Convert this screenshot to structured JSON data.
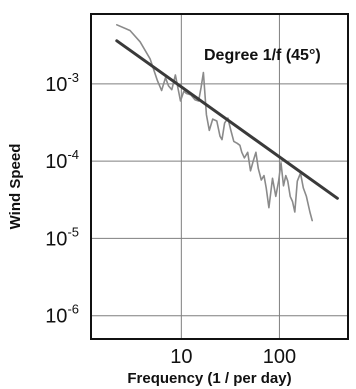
{
  "chart_data": {
    "type": "line",
    "title": "",
    "annotation": "Degree 1/f  (45°)",
    "xlabel": "Frequency (1 / per day)",
    "ylabel": "Wind Speed",
    "xscale": "log",
    "yscale": "log",
    "xlim": [
      1.2,
      500
    ],
    "ylim": [
      5e-07,
      0.008
    ],
    "x_ticks": [
      {
        "value": 10,
        "label": "10"
      },
      {
        "value": 100,
        "label": "100"
      }
    ],
    "y_ticks": [
      {
        "value": 0.001,
        "base": "10",
        "exp": "-3"
      },
      {
        "value": 0.0001,
        "base": "10",
        "exp": "-4"
      },
      {
        "value": 1e-05,
        "base": "10",
        "exp": "-5"
      },
      {
        "value": 1e-06,
        "base": "10",
        "exp": "-6"
      }
    ],
    "grid": true,
    "series": [
      {
        "role": "observed",
        "color": "#8a8a8a",
        "x": [
          2.2,
          3.0,
          3.8,
          4.8,
          5.7,
          6.3,
          6.9,
          7.4,
          8.0,
          8.7,
          9.2,
          9.8,
          10.6,
          11.3,
          12.5,
          13.8,
          15.0,
          15.9,
          16.8,
          18.0,
          19.3,
          20.9,
          23.0,
          24.8,
          26.0,
          27.6,
          29.8,
          31.7,
          34.3,
          37.1,
          39.5,
          41.3,
          43.9,
          47.5,
          50.7,
          54.0,
          57.5,
          60.9,
          65.3,
          69.6,
          73.3,
          78.1,
          84.9,
          91.9,
          98.0,
          103.8,
          110.0,
          116.2,
          121.6,
          128.8,
          136.0,
          143.4,
          152.2,
          163.8,
          175.2,
          188.4,
          204.4,
          215.6
        ],
        "y": [
          0.0058,
          0.0049,
          0.0035,
          0.0021,
          0.0011,
          0.00082,
          0.0012,
          0.00094,
          0.00084,
          0.0013,
          0.0009,
          0.0006,
          0.0008,
          0.00075,
          0.00072,
          0.00062,
          0.0006,
          0.0009,
          0.0014,
          0.0004,
          0.00025,
          0.00035,
          0.00033,
          0.00021,
          0.00019,
          0.00031,
          0.00036,
          0.00026,
          0.00018,
          0.00017,
          0.00016,
          0.00013,
          0.00011,
          0.00013,
          7.5e-05,
          0.0001,
          0.00013,
          8e-05,
          5.7e-05,
          6.5e-05,
          4.5e-05,
          2.5e-05,
          6e-05,
          3.5e-05,
          5.5e-05,
          9.5e-05,
          4.8e-05,
          6.5e-05,
          5.5e-05,
          3.5e-05,
          3e-05,
          2.2e-05,
          5.5e-05,
          7e-05,
          4.5e-05,
          3.5e-05,
          2.2e-05,
          1.7e-05
        ]
      },
      {
        "role": "fit",
        "color": "#3a3a3a",
        "x": [
          2.2,
          390
        ],
        "y": [
          0.0036,
          3.3e-05
        ]
      }
    ]
  }
}
